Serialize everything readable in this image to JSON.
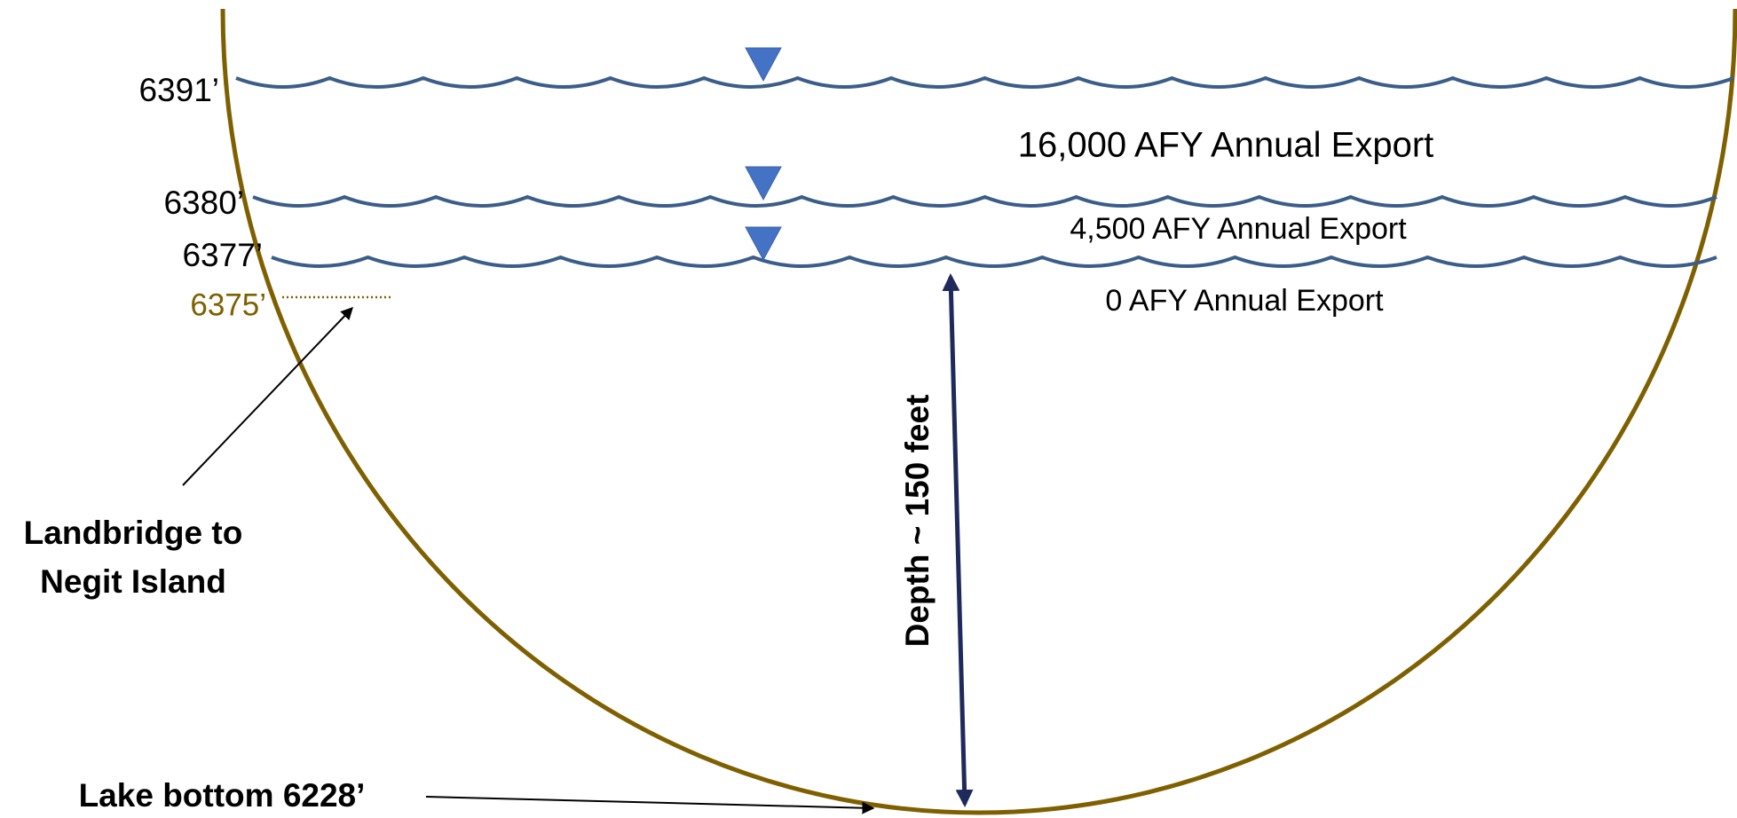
{
  "water_levels": [
    "6391’",
    "6380’",
    "6377’"
  ],
  "landbridge_level": "6375’",
  "exports": [
    "16,000 AFY Annual Export",
    "4,500 AFY Annual Export",
    "0 AFY Annual Export"
  ],
  "depth_label": "Depth ~ 150 feet",
  "landbridge_label": [
    "Landbridge to",
    "Negit Island"
  ],
  "bottom_label": "Lake bottom 6228’"
}
